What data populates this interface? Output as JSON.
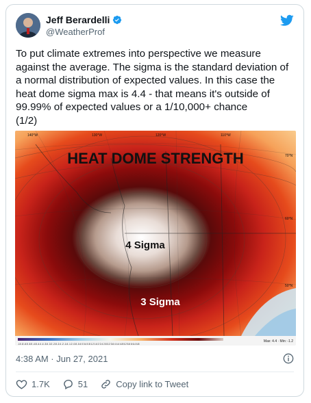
{
  "author": {
    "name": "Jeff Berardelli",
    "handle": "@WeatherProf",
    "verified_icon": "verified-badge-icon",
    "logo_icon": "twitter-bird-icon"
  },
  "tweet": {
    "text": "To put climate extremes into perspective we measure against the average. The sigma is the standard deviation of a normal distribution of expected values. In this case the heat dome sigma max is 4.4 - that means it's outside of 99.99% of expected values or a 1/10,000+ chance\n(1/2)",
    "timestamp": "4:38 AM · Jun 27, 2021"
  },
  "map": {
    "title": "HEAT DOME STRENGTH",
    "label_inner": "4 Sigma",
    "label_outer": "3 Sigma",
    "lon_labels": [
      "140°W",
      "130°W",
      "120°W",
      "110°W"
    ],
    "lat_labels": [
      "70°N",
      "60°N",
      "50°N"
    ],
    "stats": "Max: 4.4 · Min: -1.2",
    "scale_text": "-10 -8 -6.5 -5.5 -4.8 -4.4 -4 -3.6 -3.2 -2.8 -2.4 -2 -1.6 -1.2 -0.8 -0.4 0 0.4 0.8 1.2 1.6 2 2.4 2.8 3.2 3.6 4 4.4 4.8 5.2 5.6 6 6.4 6.8",
    "colors": {
      "hot": "#8b0b0b",
      "warm": "#e64b1c",
      "mild": "#f6a25a",
      "cool": "#c8e0ee",
      "core": "#b59a8c"
    }
  },
  "actions": {
    "likes": "1.7K",
    "replies": "51",
    "copy_link": "Copy link to Tweet"
  }
}
